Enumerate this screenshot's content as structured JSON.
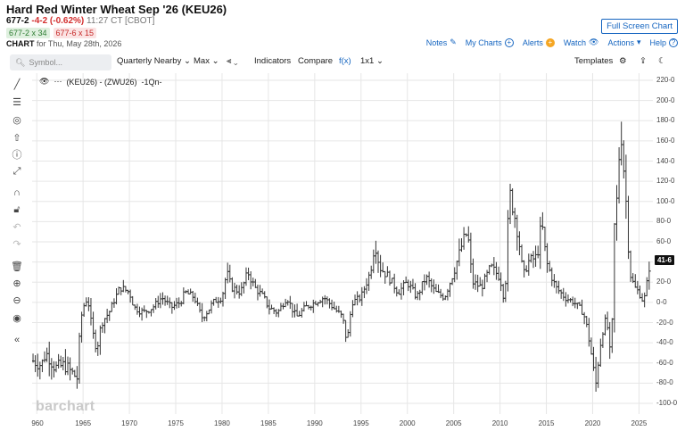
{
  "header": {
    "title": "Hard Red Winter Wheat Sep '26 (KEU26)",
    "last": "677-2",
    "change": "-4-2 (-0.62%)",
    "time": "11:27 CT [CBOT]",
    "bid": "677-2 x 34",
    "ask": "677-6 x 15",
    "chart_label": "CHART",
    "chart_for": "for Thu, May 28th, 2026",
    "full_screen": "Full Screen Chart",
    "links": {
      "notes": "Notes",
      "my_charts": "My Charts",
      "alerts": "Alerts",
      "watch": "Watch",
      "actions": "Actions",
      "help": "Help"
    }
  },
  "toolbar": {
    "symbol_placeholder": "Symbol...",
    "period": "Quarterly Nearby",
    "range": "Max",
    "indicators": "Indicators",
    "compare": "Compare",
    "fx": "f(x)",
    "layout": "1x1",
    "templates": "Templates"
  },
  "legend": {
    "text": "(KEU26) - (ZWU26)",
    "suffix": "-1Qn-"
  },
  "last_value_label": "41-6",
  "watermark": "barchart",
  "colors": {
    "accent": "#1565c0",
    "down": "#d32f2f",
    "up": "#2e7d32",
    "alert": "#f5a623"
  },
  "chart_data": {
    "type": "bar",
    "subtype": "ohlc",
    "ylim": [
      -100,
      220
    ],
    "y_ticks": [
      "220-0",
      "200-0",
      "180-0",
      "160-0",
      "140-0",
      "120-0",
      "100-0",
      "80-0",
      "60-0",
      "40-0",
      "20-0",
      "0-0",
      "-20-0",
      "-40-0",
      "-60-0",
      "-80-0",
      "-100-0"
    ],
    "x_ticks": [
      "960",
      "1965",
      "1970",
      "1975",
      "1980",
      "1985",
      "1990",
      "1995",
      "2000",
      "2005",
      "2010",
      "2015",
      "2020",
      "2025"
    ],
    "x_range": [
      1959.5,
      2026.5
    ],
    "grid": true,
    "last_value": 41.75,
    "anchors": [
      [
        1959.6,
        -58
      ],
      [
        1960.5,
        -62
      ],
      [
        1961,
        -50
      ],
      [
        1962,
        -65
      ],
      [
        1963,
        -62
      ],
      [
        1963.8,
        -70
      ],
      [
        1964.4,
        -75
      ],
      [
        1964.7,
        -20
      ],
      [
        1965,
        -5
      ],
      [
        1965.5,
        5
      ],
      [
        1966,
        -30
      ],
      [
        1966.5,
        -45
      ],
      [
        1967,
        -20
      ],
      [
        1967.8,
        -10
      ],
      [
        1968.5,
        5
      ],
      [
        1969,
        15
      ],
      [
        1970,
        10
      ],
      [
        1970.5,
        -5
      ],
      [
        1971.5,
        -10
      ],
      [
        1972.5,
        -5
      ],
      [
        1973.5,
        5
      ],
      [
        1974.5,
        -5
      ],
      [
        1975.5,
        0
      ],
      [
        1976,
        10
      ],
      [
        1977,
        5
      ],
      [
        1977.8,
        -15
      ],
      [
        1978.5,
        -8
      ],
      [
        1979,
        0
      ],
      [
        1980,
        5
      ],
      [
        1980.5,
        30
      ],
      [
        1981,
        15
      ],
      [
        1982,
        10
      ],
      [
        1982.8,
        30
      ],
      [
        1983.5,
        15
      ],
      [
        1984.5,
        5
      ],
      [
        1985,
        -5
      ],
      [
        1986,
        -10
      ],
      [
        1987,
        5
      ],
      [
        1988,
        -15
      ],
      [
        1989,
        -5
      ],
      [
        1990,
        0
      ],
      [
        1991,
        5
      ],
      [
        1992,
        -5
      ],
      [
        1993,
        -15
      ],
      [
        1993.5,
        -40
      ],
      [
        1994,
        0
      ],
      [
        1995,
        5
      ],
      [
        1996,
        30
      ],
      [
        1996.5,
        60
      ],
      [
        1997,
        35
      ],
      [
        1998,
        25
      ],
      [
        1999,
        10
      ],
      [
        2000,
        20
      ],
      [
        2001,
        5
      ],
      [
        2002,
        25
      ],
      [
        2003,
        10
      ],
      [
        2004,
        5
      ],
      [
        2005,
        30
      ],
      [
        2006,
        60
      ],
      [
        2006.5,
        70
      ],
      [
        2007,
        20
      ],
      [
        2008,
        15
      ],
      [
        2009,
        35
      ],
      [
        2010,
        25
      ],
      [
        2010.5,
        0
      ],
      [
        2011,
        110
      ],
      [
        2011.5,
        90
      ],
      [
        2012,
        65
      ],
      [
        2012.5,
        25
      ],
      [
        2013,
        40
      ],
      [
        2014,
        45
      ],
      [
        2014.5,
        80
      ],
      [
        2015,
        40
      ],
      [
        2016,
        15
      ],
      [
        2017,
        5
      ],
      [
        2018,
        0
      ],
      [
        2019,
        -10
      ],
      [
        2019.5,
        -30
      ],
      [
        2020,
        -60
      ],
      [
        2020.3,
        -85
      ],
      [
        2020.7,
        -50
      ],
      [
        2021,
        -30
      ],
      [
        2021.5,
        -15
      ],
      [
        2022,
        -65
      ],
      [
        2022.3,
        70
      ],
      [
        2022.7,
        110
      ],
      [
        2023,
        180
      ],
      [
        2023.3,
        140
      ],
      [
        2023.6,
        100
      ],
      [
        2024,
        30
      ],
      [
        2024.5,
        15
      ],
      [
        2025,
        10
      ],
      [
        2025.5,
        0
      ],
      [
        2025.8,
        15
      ],
      [
        2026.2,
        41.75
      ]
    ]
  }
}
